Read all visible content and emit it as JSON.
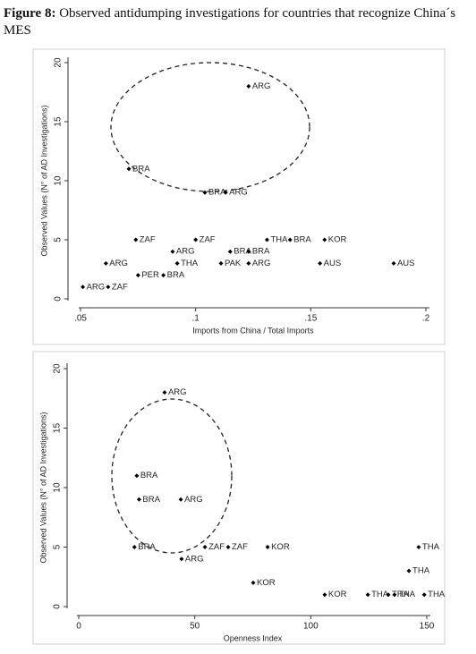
{
  "caption": {
    "label": "Figure 8:",
    "text": "Observed antidumping investigations for countries that recognize China´s MES"
  },
  "chart_data": [
    {
      "type": "scatter",
      "xlabel": "Imports from China / Total Imports",
      "ylabel": "Observed Values (N° of AD Investigations)",
      "labels": [
        "ARG",
        "BRA",
        "BRA",
        "ARG",
        "ZAF",
        "ZAF",
        "THA",
        "BRA",
        "KOR",
        "ARG",
        "BRA",
        "BRA",
        "ARG",
        "THA",
        "PAK",
        "ARG",
        "AUS",
        "AUS",
        "PER",
        "BRA",
        "ARG",
        "ZAF"
      ],
      "x": [
        0.123,
        0.071,
        0.104,
        0.113,
        0.074,
        0.1,
        0.131,
        0.141,
        0.156,
        0.09,
        0.115,
        0.123,
        0.061,
        0.092,
        0.111,
        0.123,
        0.154,
        0.186,
        0.075,
        0.086,
        0.051,
        0.062
      ],
      "y": [
        18,
        11,
        9,
        9,
        5,
        5,
        5,
        5,
        5,
        4,
        4,
        4,
        3,
        3,
        3,
        3,
        3,
        3,
        2,
        2,
        1,
        1
      ],
      "color": "#000000",
      "xlim": [
        0.05,
        0.2
      ],
      "xticks": [
        {
          "value": 0.05,
          "label": ".05"
        },
        {
          "value": 0.1,
          "label": ".1"
        },
        {
          "value": 0.15,
          "label": ".15"
        },
        {
          "value": 0.2,
          "label": ".2"
        }
      ],
      "ylim": [
        0,
        20
      ],
      "yticks": [
        0,
        5,
        10,
        15,
        20
      ]
    },
    {
      "type": "scatter",
      "xlabel": "Openness Index",
      "ylabel": "Observed Values (N° of AD Investigations)",
      "labels": [
        "ARG",
        "BRA",
        "BRA",
        "ARG",
        "BRA",
        "ZAF",
        "ZAF",
        "KOR",
        "THA",
        "ARG",
        "KOR",
        "THA",
        "KOR",
        "THA",
        "THA",
        "THA",
        "THA"
      ],
      "x": [
        37,
        25,
        26,
        44,
        24,
        54.4,
        64.4,
        81.4,
        146.5,
        44.3,
        75.2,
        142.3,
        106,
        124.6,
        133.4,
        136.1,
        148.9
      ],
      "y": [
        18,
        11,
        9,
        9,
        5,
        5,
        5,
        5,
        5,
        4,
        2,
        3,
        1,
        1,
        1,
        1,
        1
      ],
      "color": "#000000",
      "xlim": [
        0,
        150
      ],
      "xticks": [
        0,
        50,
        100,
        150
      ],
      "ylim": [
        0,
        20
      ],
      "yticks": [
        0,
        5,
        10,
        15,
        20
      ]
    }
  ]
}
